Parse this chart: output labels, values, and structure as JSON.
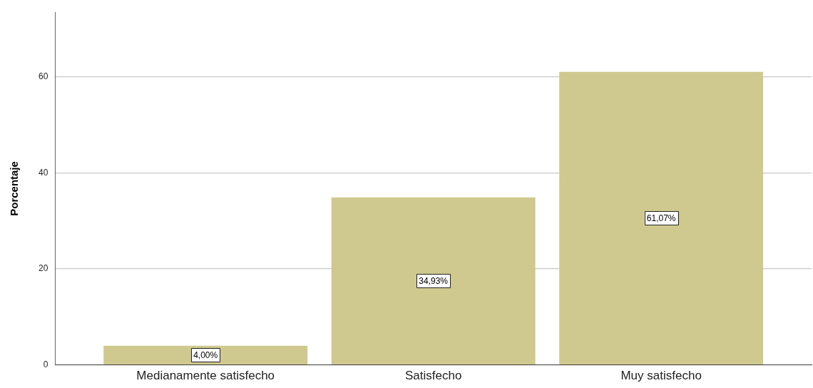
{
  "chart_data": {
    "type": "bar",
    "ylabel": "Porcentaje",
    "categories": [
      "Medianamente satisfecho",
      "Satisfecho",
      "Muy satisfecho"
    ],
    "values": [
      4.0,
      34.93,
      61.07
    ],
    "color": "#cfc98f",
    "value_labels": [
      "4,00%",
      "34,93%",
      "61,07%"
    ],
    "ylim": [
      0,
      73.5
    ],
    "yticks": [
      0,
      20,
      40,
      60
    ],
    "grid": "y"
  }
}
